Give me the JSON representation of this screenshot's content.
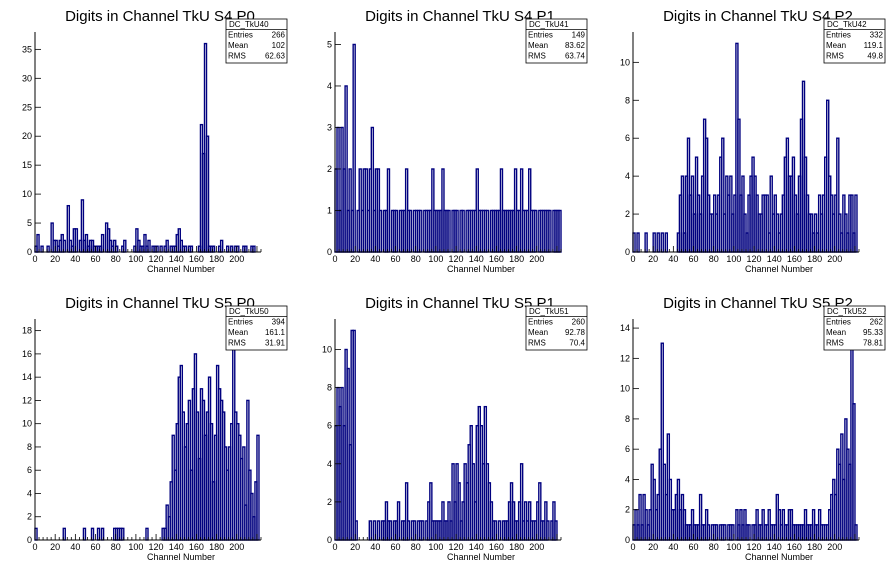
{
  "colors": {
    "histogram": "#00007f",
    "axis": "#000000",
    "background": "#ffffff"
  },
  "chart_data": [
    {
      "type": "bar",
      "title": "Digits in Channel TkU S4 P0",
      "xlabel": "Channel Number",
      "xlim": [
        0,
        224
      ],
      "ylim": [
        0,
        38
      ],
      "xticks": [
        0,
        20,
        40,
        60,
        80,
        100,
        120,
        140,
        160,
        180,
        200
      ],
      "yticks": [
        0,
        5,
        10,
        15,
        20,
        25,
        30,
        35
      ],
      "stats": {
        "name": "DC_TkU40",
        "rows": [
          {
            "label": "Entries",
            "value": "266"
          },
          {
            "label": "Mean",
            "value": "102"
          },
          {
            "label": "RMS",
            "value": "62.63"
          }
        ]
      },
      "bin_width": 2,
      "x_start": 0,
      "values": [
        1,
        3,
        0,
        1,
        0,
        0,
        1,
        0,
        5,
        2,
        2,
        1,
        2,
        3,
        2,
        0,
        8,
        2,
        1,
        4,
        4,
        0,
        2,
        9,
        2,
        3,
        1,
        2,
        2,
        1,
        1,
        1,
        1,
        3,
        0,
        5,
        4,
        2,
        1,
        2,
        1,
        0,
        0,
        1,
        2,
        0,
        0,
        0,
        0,
        1,
        4,
        2,
        1,
        1,
        3,
        1,
        2,
        0,
        1,
        1,
        1,
        0,
        1,
        0,
        1,
        2,
        0,
        1,
        1,
        1,
        3,
        4,
        2,
        1,
        1,
        0,
        1,
        1,
        0,
        0,
        0,
        1,
        22,
        17,
        36,
        20,
        1,
        1,
        1,
        0,
        0,
        1,
        2,
        0,
        0,
        1,
        0,
        1,
        0,
        1,
        1,
        0,
        0,
        1,
        1,
        0,
        0,
        1,
        1,
        0
      ]
    },
    {
      "type": "bar",
      "title": "Digits in Channel TkU S4 P1",
      "xlabel": "Channel Number",
      "xlim": [
        0,
        224
      ],
      "ylim": [
        0,
        5.3
      ],
      "xticks": [
        0,
        20,
        40,
        60,
        80,
        100,
        120,
        140,
        160,
        180,
        200
      ],
      "yticks": [
        0,
        1,
        2,
        3,
        4,
        5
      ],
      "stats": {
        "name": "DC_TkU41",
        "rows": [
          {
            "label": "Entries",
            "value": "149"
          },
          {
            "label": "Mean",
            "value": "83.62"
          },
          {
            "label": "RMS",
            "value": "63.74"
          }
        ]
      },
      "bin_width": 2,
      "x_start": 0,
      "values": [
        2,
        3,
        1,
        3,
        2,
        4,
        1,
        2,
        1,
        5,
        0,
        1,
        2,
        1,
        2,
        2,
        1,
        2,
        3,
        1,
        2,
        2,
        1,
        0,
        1,
        1,
        2,
        0,
        1,
        1,
        1,
        0,
        1,
        1,
        1,
        2,
        1,
        1,
        0,
        1,
        1,
        1,
        1,
        0,
        1,
        1,
        1,
        1,
        2,
        1,
        1,
        1,
        1,
        2,
        1,
        1,
        1,
        0,
        1,
        1,
        1,
        0,
        1,
        1,
        0,
        1,
        1,
        1,
        1,
        1,
        2,
        1,
        1,
        1,
        1,
        1,
        0,
        1,
        1,
        1,
        1,
        1,
        2,
        1,
        1,
        1,
        1,
        1,
        1,
        2,
        1,
        1,
        2,
        1,
        1,
        1,
        2,
        1,
        1,
        1,
        0,
        1,
        1,
        1,
        1,
        1,
        1,
        0,
        1,
        1,
        1,
        1
      ]
    },
    {
      "type": "bar",
      "title": "Digits in Channel TkU S4 P2",
      "xlabel": "Channel Number",
      "xlim": [
        0,
        224
      ],
      "ylim": [
        0,
        11.6
      ],
      "xticks": [
        0,
        20,
        40,
        60,
        80,
        100,
        120,
        140,
        160,
        180,
        200
      ],
      "yticks": [
        0,
        2,
        4,
        6,
        8,
        10
      ],
      "stats": {
        "name": "DC_TkU42",
        "rows": [
          {
            "label": "Entries",
            "value": "332"
          },
          {
            "label": "Mean",
            "value": "119.1"
          },
          {
            "label": "RMS",
            "value": "49.8"
          }
        ]
      },
      "bin_width": 2,
      "x_start": 0,
      "values": [
        1,
        0,
        1,
        0,
        0,
        0,
        1,
        0,
        0,
        0,
        1,
        0,
        1,
        0,
        1,
        0,
        1,
        0,
        0,
        0,
        0,
        0,
        1,
        3,
        4,
        1,
        4,
        6,
        3,
        4,
        2,
        5,
        3,
        2,
        4,
        7,
        6,
        3,
        2,
        2,
        3,
        2,
        3,
        5,
        6,
        2,
        4,
        3,
        4,
        2,
        3,
        11,
        7,
        3,
        4,
        2,
        1,
        3,
        4,
        5,
        4,
        3,
        2,
        2,
        3,
        3,
        3,
        1,
        4,
        2,
        3,
        2,
        1,
        2,
        3,
        5,
        6,
        4,
        4,
        5,
        3,
        2,
        4,
        7,
        9,
        5,
        3,
        2,
        2,
        1,
        2,
        1,
        3,
        2,
        3,
        5,
        8,
        4,
        3,
        2,
        3,
        6,
        2,
        1,
        3,
        2,
        1,
        3,
        3,
        1,
        3,
        0
      ]
    },
    {
      "type": "bar",
      "title": "Digits in Channel TkU S5 P0",
      "xlabel": "Channel Number",
      "xlim": [
        0,
        224
      ],
      "ylim": [
        0,
        19
      ],
      "xticks": [
        0,
        20,
        40,
        60,
        80,
        100,
        120,
        140,
        160,
        180,
        200
      ],
      "yticks": [
        0,
        2,
        4,
        6,
        8,
        10,
        12,
        14,
        16,
        18
      ],
      "stats": {
        "name": "DC_TkU50",
        "rows": [
          {
            "label": "Entries",
            "value": "394"
          },
          {
            "label": "Mean",
            "value": "161.1"
          },
          {
            "label": "RMS",
            "value": "31.91"
          }
        ]
      },
      "bin_width": 2,
      "x_start": 0,
      "values": [
        1,
        0,
        0,
        0,
        0,
        0,
        0,
        0,
        0,
        0,
        0,
        0,
        0,
        0,
        1,
        0,
        0,
        0,
        0,
        0,
        0,
        0,
        0,
        0,
        1,
        0,
        0,
        0,
        1,
        0,
        0,
        1,
        0,
        1,
        0,
        0,
        0,
        0,
        0,
        1,
        1,
        1,
        1,
        1,
        0,
        0,
        0,
        0,
        0,
        0,
        0,
        0,
        0,
        0,
        0,
        1,
        0,
        0,
        0,
        0,
        0,
        0,
        0,
        1,
        1,
        3,
        2,
        5,
        9,
        6,
        10,
        14,
        15,
        11,
        8,
        10,
        12,
        6,
        13,
        16,
        11,
        7,
        13,
        12,
        9,
        11,
        14,
        10,
        5,
        9,
        15,
        13,
        12,
        11,
        8,
        6,
        8,
        10,
        17,
        11,
        10,
        9,
        7,
        8,
        3,
        12,
        6,
        4,
        2,
        5,
        9
      ]
    },
    {
      "type": "bar",
      "title": "Digits in Channel TkU S5 P1",
      "xlabel": "Channel Number",
      "xlim": [
        0,
        224
      ],
      "ylim": [
        0,
        11.6
      ],
      "xticks": [
        0,
        20,
        40,
        60,
        80,
        100,
        120,
        140,
        160,
        180,
        200
      ],
      "yticks": [
        0,
        2,
        4,
        6,
        8,
        10
      ],
      "stats": {
        "name": "DC_TkU51",
        "rows": [
          {
            "label": "Entries",
            "value": "260"
          },
          {
            "label": "Mean",
            "value": "92.78"
          },
          {
            "label": "RMS",
            "value": "70.4"
          }
        ]
      },
      "bin_width": 2,
      "x_start": 0,
      "values": [
        6,
        8,
        7,
        8,
        6,
        10,
        9,
        5,
        11,
        11,
        1,
        0,
        0,
        0,
        0,
        0,
        0,
        1,
        0,
        1,
        0,
        1,
        0,
        1,
        1,
        2,
        1,
        1,
        0,
        1,
        1,
        2,
        0,
        1,
        1,
        3,
        1,
        0,
        1,
        1,
        0,
        1,
        1,
        1,
        0,
        1,
        2,
        3,
        1,
        1,
        1,
        1,
        1,
        2,
        1,
        1,
        2,
        1,
        4,
        2,
        4,
        3,
        1,
        2,
        4,
        3,
        5,
        6,
        4,
        2,
        6,
        7,
        6,
        4,
        7,
        4,
        3,
        2,
        1,
        1,
        0,
        1,
        0,
        1,
        1,
        1,
        2,
        3,
        2,
        1,
        1,
        2,
        4,
        1,
        2,
        1,
        2,
        1,
        1,
        1,
        2,
        3,
        1,
        1,
        2,
        1,
        0,
        1,
        2,
        1
      ]
    },
    {
      "type": "bar",
      "title": "Digits in Channel TkU S5 P2",
      "xlabel": "Channel Number",
      "xlim": [
        0,
        224
      ],
      "ylim": [
        0,
        14.6
      ],
      "xticks": [
        0,
        20,
        40,
        60,
        80,
        100,
        120,
        140,
        160,
        180,
        200
      ],
      "yticks": [
        0,
        2,
        4,
        6,
        8,
        10,
        12,
        14
      ],
      "stats": {
        "name": "DC_TkU52",
        "rows": [
          {
            "label": "Entries",
            "value": "262"
          },
          {
            "label": "Mean",
            "value": "95.33"
          },
          {
            "label": "RMS",
            "value": "78.81"
          }
        ]
      },
      "bin_width": 2,
      "x_start": 0,
      "values": [
        1,
        2,
        1,
        3,
        1,
        3,
        2,
        1,
        2,
        5,
        4,
        2,
        3,
        6,
        13,
        5,
        3,
        7,
        4,
        2,
        2,
        3,
        4,
        2,
        3,
        2,
        1,
        1,
        1,
        2,
        1,
        1,
        1,
        3,
        1,
        1,
        2,
        1,
        0,
        1,
        1,
        1,
        0,
        1,
        1,
        1,
        0,
        1,
        1,
        1,
        0,
        2,
        1,
        2,
        1,
        2,
        1,
        1,
        0,
        1,
        1,
        2,
        1,
        1,
        2,
        1,
        1,
        2,
        1,
        1,
        1,
        3,
        2,
        1,
        2,
        1,
        1,
        2,
        2,
        1,
        1,
        1,
        1,
        1,
        1,
        2,
        1,
        1,
        1,
        2,
        1,
        1,
        2,
        1,
        1,
        1,
        1,
        2,
        3,
        4,
        3,
        6,
        5,
        7,
        4,
        8,
        6,
        5,
        13,
        9,
        1
      ]
    }
  ]
}
